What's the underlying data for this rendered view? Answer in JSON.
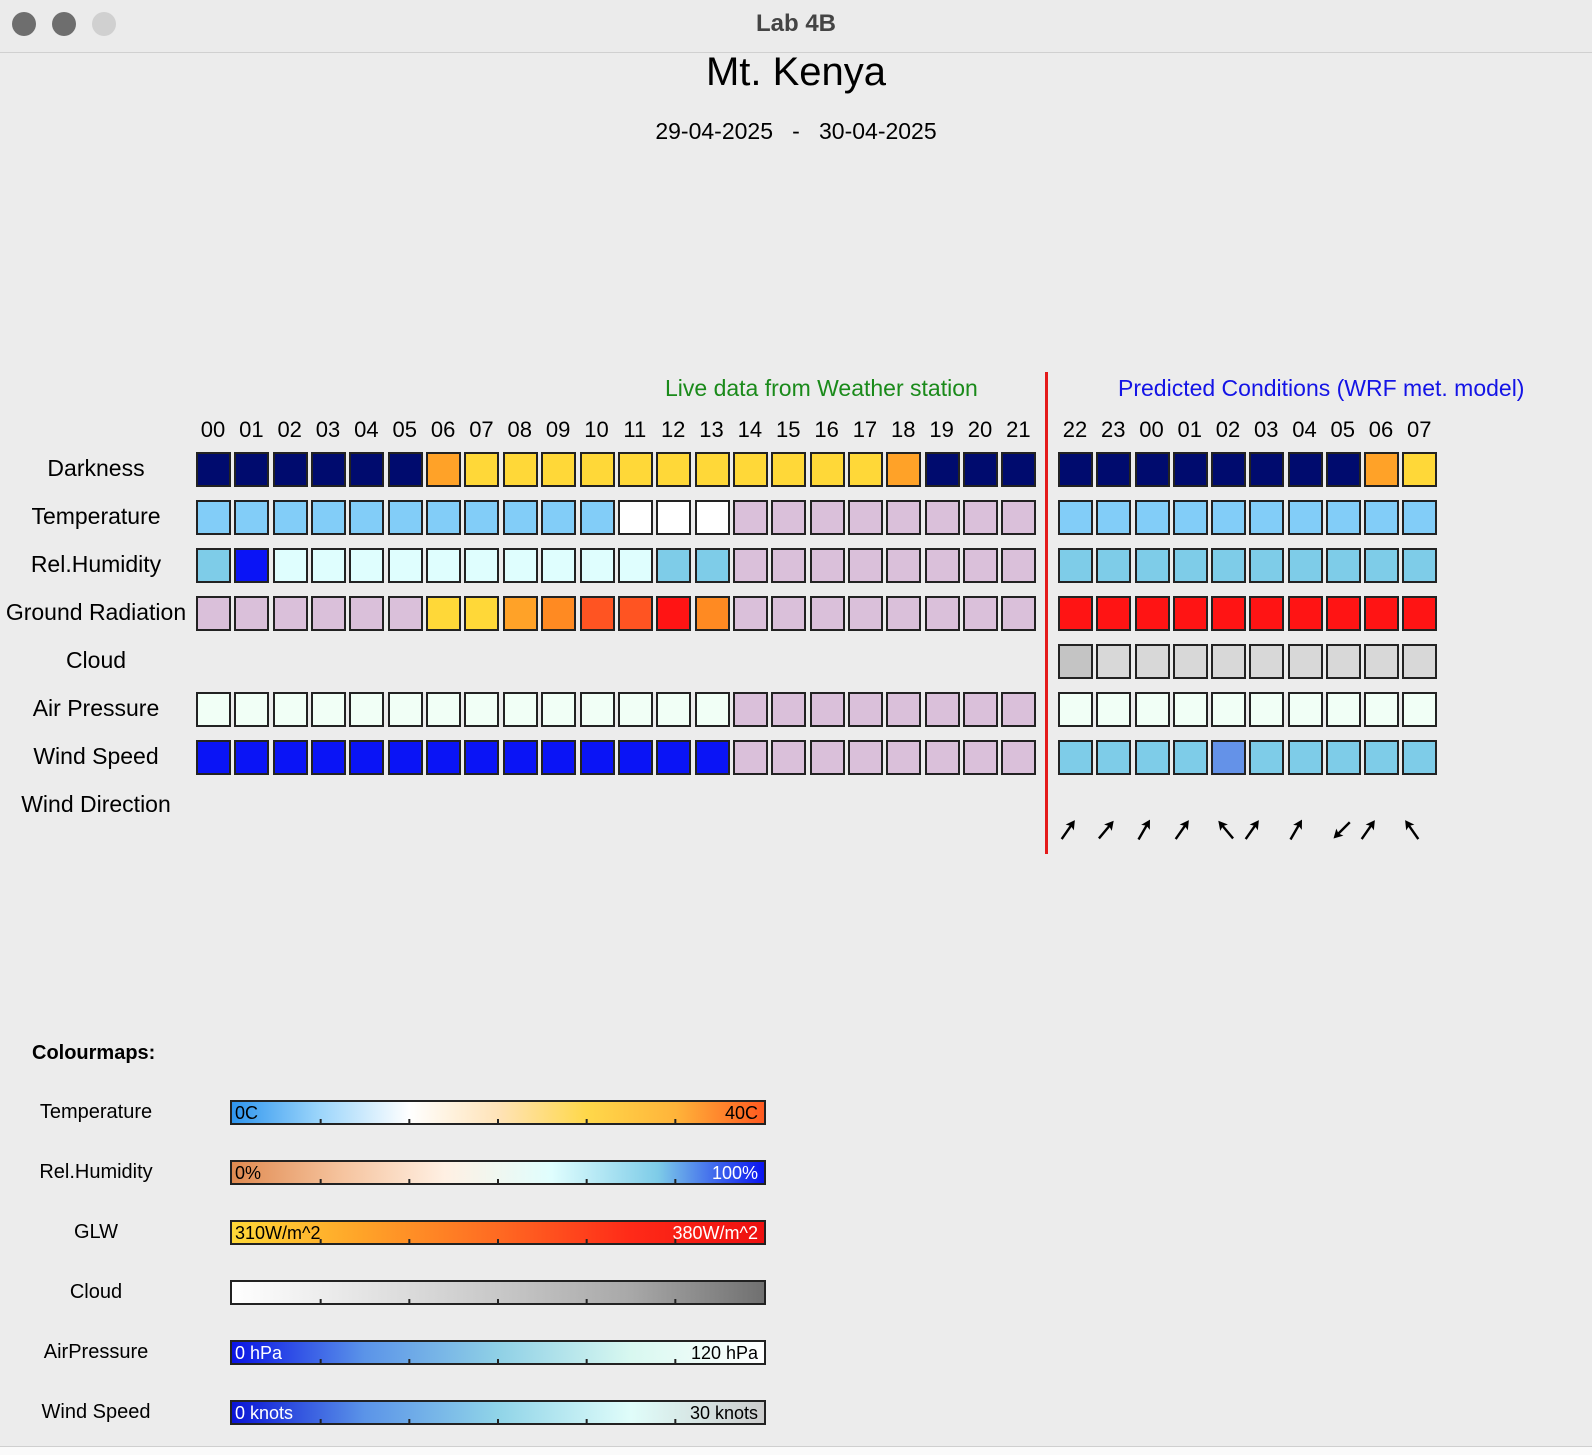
{
  "window": {
    "title": "Lab 4B"
  },
  "header": {
    "title": "Mt. Kenya",
    "date_range": "29-04-2025   -   30-04-2025"
  },
  "sections": {
    "live_label": "Live data from Weather station",
    "predicted_label": "Predicted Conditions (WRF met. model)"
  },
  "hours_live": [
    "00",
    "01",
    "02",
    "03",
    "04",
    "05",
    "06",
    "07",
    "08",
    "09",
    "10",
    "11",
    "12",
    "13",
    "14",
    "15",
    "16",
    "17",
    "18",
    "19",
    "20",
    "21"
  ],
  "hours_predicted": [
    "22",
    "23",
    "00",
    "01",
    "02",
    "03",
    "04",
    "05",
    "06",
    "07"
  ],
  "palette": {
    "navy": "#000b6e",
    "orange": "#ffa228",
    "yellow": "#ffd838",
    "skyblue": "#82cdf8",
    "white": "#ffffff",
    "lilac": "#dac0da",
    "lightblue": "#7ecce8",
    "blue": "#0a14f6",
    "palecyan": "#dffefe",
    "orange2": "#ff8a22",
    "redorange": "#ff5422",
    "red": "#ff1414",
    "grey": "#c4c4c4",
    "lightgrey": "#d8d8d8",
    "honeydew": "#f1fff6",
    "cornflower": "#6492e8",
    "empty": ""
  },
  "rows": [
    {
      "label": "Darkness",
      "live": [
        "navy",
        "navy",
        "navy",
        "navy",
        "navy",
        "navy",
        "orange",
        "yellow",
        "yellow",
        "yellow",
        "yellow",
        "yellow",
        "yellow",
        "yellow",
        "yellow",
        "yellow",
        "yellow",
        "yellow",
        "orange",
        "navy",
        "navy",
        "navy"
      ],
      "predicted": [
        "navy",
        "navy",
        "navy",
        "navy",
        "navy",
        "navy",
        "navy",
        "navy",
        "orange",
        "yellow"
      ]
    },
    {
      "label": "Temperature",
      "live": [
        "skyblue",
        "skyblue",
        "skyblue",
        "skyblue",
        "skyblue",
        "skyblue",
        "skyblue",
        "skyblue",
        "skyblue",
        "skyblue",
        "skyblue",
        "white",
        "white",
        "white",
        "lilac",
        "lilac",
        "lilac",
        "lilac",
        "lilac",
        "lilac",
        "lilac",
        "lilac"
      ],
      "predicted": [
        "skyblue",
        "skyblue",
        "skyblue",
        "skyblue",
        "skyblue",
        "skyblue",
        "skyblue",
        "skyblue",
        "skyblue",
        "skyblue"
      ]
    },
    {
      "label": "Rel.Humidity",
      "live": [
        "lightblue",
        "blue",
        "palecyan",
        "palecyan",
        "palecyan",
        "palecyan",
        "palecyan",
        "palecyan",
        "palecyan",
        "palecyan",
        "palecyan",
        "palecyan",
        "lightblue",
        "lightblue",
        "lilac",
        "lilac",
        "lilac",
        "lilac",
        "lilac",
        "lilac",
        "lilac",
        "lilac"
      ],
      "predicted": [
        "lightblue",
        "lightblue",
        "lightblue",
        "lightblue",
        "lightblue",
        "lightblue",
        "lightblue",
        "lightblue",
        "lightblue",
        "lightblue"
      ]
    },
    {
      "label": "Ground Radiation",
      "live": [
        "lilac",
        "lilac",
        "lilac",
        "lilac",
        "lilac",
        "lilac",
        "yellow",
        "yellow",
        "orange",
        "orange2",
        "redorange",
        "redorange",
        "red",
        "orange2",
        "lilac",
        "lilac",
        "lilac",
        "lilac",
        "lilac",
        "lilac",
        "lilac",
        "lilac"
      ],
      "predicted": [
        "red",
        "red",
        "red",
        "red",
        "red",
        "red",
        "red",
        "red",
        "red",
        "red"
      ]
    },
    {
      "label": "Cloud",
      "live": [
        "empty",
        "empty",
        "empty",
        "empty",
        "empty",
        "empty",
        "empty",
        "empty",
        "empty",
        "empty",
        "empty",
        "empty",
        "empty",
        "empty",
        "empty",
        "empty",
        "empty",
        "empty",
        "empty",
        "empty",
        "empty",
        "empty"
      ],
      "predicted": [
        "grey",
        "lightgrey",
        "lightgrey",
        "lightgrey",
        "lightgrey",
        "lightgrey",
        "lightgrey",
        "lightgrey",
        "lightgrey",
        "lightgrey"
      ]
    },
    {
      "label": "Air Pressure",
      "live": [
        "honeydew",
        "honeydew",
        "honeydew",
        "honeydew",
        "honeydew",
        "honeydew",
        "honeydew",
        "honeydew",
        "honeydew",
        "honeydew",
        "honeydew",
        "honeydew",
        "honeydew",
        "honeydew",
        "lilac",
        "lilac",
        "lilac",
        "lilac",
        "lilac",
        "lilac",
        "lilac",
        "lilac"
      ],
      "predicted": [
        "honeydew",
        "honeydew",
        "honeydew",
        "honeydew",
        "honeydew",
        "honeydew",
        "honeydew",
        "honeydew",
        "honeydew",
        "honeydew"
      ]
    },
    {
      "label": "Wind Speed",
      "live": [
        "blue",
        "blue",
        "blue",
        "blue",
        "blue",
        "blue",
        "blue",
        "blue",
        "blue",
        "blue",
        "blue",
        "blue",
        "blue",
        "blue",
        "lilac",
        "lilac",
        "lilac",
        "lilac",
        "lilac",
        "lilac",
        "lilac",
        "lilac"
      ],
      "predicted": [
        "lightblue",
        "lightblue",
        "lightblue",
        "lightblue",
        "cornflower",
        "lightblue",
        "lightblue",
        "lightblue",
        "lightblue",
        "lightblue"
      ]
    },
    {
      "label": "Wind Direction",
      "live": [],
      "predicted": []
    }
  ],
  "wind_direction_predicted_deg": [
    [
      35
    ],
    [
      40
    ],
    [
      30
    ],
    [
      35
    ],
    [
      320,
      35
    ],
    [
      30
    ],
    [
      225,
      35
    ],
    [
      325
    ]
  ],
  "colourmaps": {
    "heading": "Colourmaps:",
    "items": [
      {
        "label": "Temperature",
        "min": "0C",
        "max": "40C",
        "min_color": "#000000",
        "max_color": "#000000",
        "gradient": [
          "#2f95ee",
          "#9dd6fb",
          "#ffffff",
          "#ffe3b8",
          "#ffd84a",
          "#ffb43a",
          "#ff5a20"
        ]
      },
      {
        "label": "Rel.Humidity",
        "min": "0%",
        "max": "100%",
        "min_color": "#000000",
        "max_color": "#ffffff",
        "gradient": [
          "#e08a50",
          "#f5c29c",
          "#fff0e3",
          "#e0fefe",
          "#7ecce8",
          "#0a14f0"
        ]
      },
      {
        "label": "GLW",
        "min": "310W/m^2",
        "max": "380W/m^2",
        "min_color": "#000000",
        "max_color": "#ffffff",
        "gradient": [
          "#ffd838",
          "#ffa228",
          "#ff6a22",
          "#ff2a18",
          "#ee1010"
        ]
      },
      {
        "label": "Cloud",
        "min": "",
        "max": "",
        "min_color": "#000000",
        "max_color": "#000000",
        "gradient": [
          "#ffffff",
          "#e4e4e4",
          "#c8c8c8",
          "#a8a8a8",
          "#707070"
        ]
      },
      {
        "label": "AirPressure",
        "min": "0 hPa",
        "max": "120 hPa",
        "min_color": "#ffffff",
        "max_color": "#000000",
        "gradient": [
          "#0a14e6",
          "#5b94e8",
          "#8fd0e6",
          "#d8f8f0",
          "#ffffff"
        ]
      },
      {
        "label": "Wind Speed",
        "min": "0 knots",
        "max": "30 knots",
        "min_color": "#ffffff",
        "max_color": "#000000",
        "gradient": [
          "#0a14d6",
          "#5b94e8",
          "#90d4e8",
          "#e0fdfa",
          "#cccccc"
        ]
      }
    ]
  }
}
